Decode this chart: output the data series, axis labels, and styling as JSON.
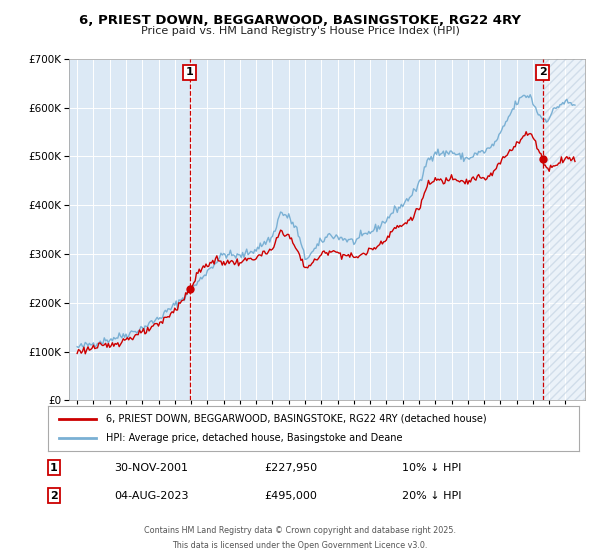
{
  "title": "6, PRIEST DOWN, BEGGARWOOD, BASINGSTOKE, RG22 4RY",
  "subtitle": "Price paid vs. HM Land Registry's House Price Index (HPI)",
  "red_label": "6, PRIEST DOWN, BEGGARWOOD, BASINGSTOKE, RG22 4RY (detached house)",
  "blue_label": "HPI: Average price, detached house, Basingstoke and Deane",
  "annotation1_label": "1",
  "annotation1_date": "30-NOV-2001",
  "annotation1_price": "£227,950",
  "annotation1_hpi": "10% ↓ HPI",
  "annotation2_label": "2",
  "annotation2_date": "04-AUG-2023",
  "annotation2_price": "£495,000",
  "annotation2_hpi": "20% ↓ HPI",
  "vline1_x": 2001.92,
  "vline2_x": 2023.59,
  "marker1_x": 2001.92,
  "marker1_y": 227950,
  "marker2_x": 2023.59,
  "marker2_y": 495000,
  "red_color": "#cc0000",
  "blue_color": "#7ab0d4",
  "background_color": "#dce9f5",
  "ylim": [
    0,
    700000
  ],
  "xlim_start": 1994.5,
  "xlim_end": 2026.2,
  "footer_line1": "Contains HM Land Registry data © Crown copyright and database right 2025.",
  "footer_line2": "This data is licensed under the Open Government Licence v3.0."
}
